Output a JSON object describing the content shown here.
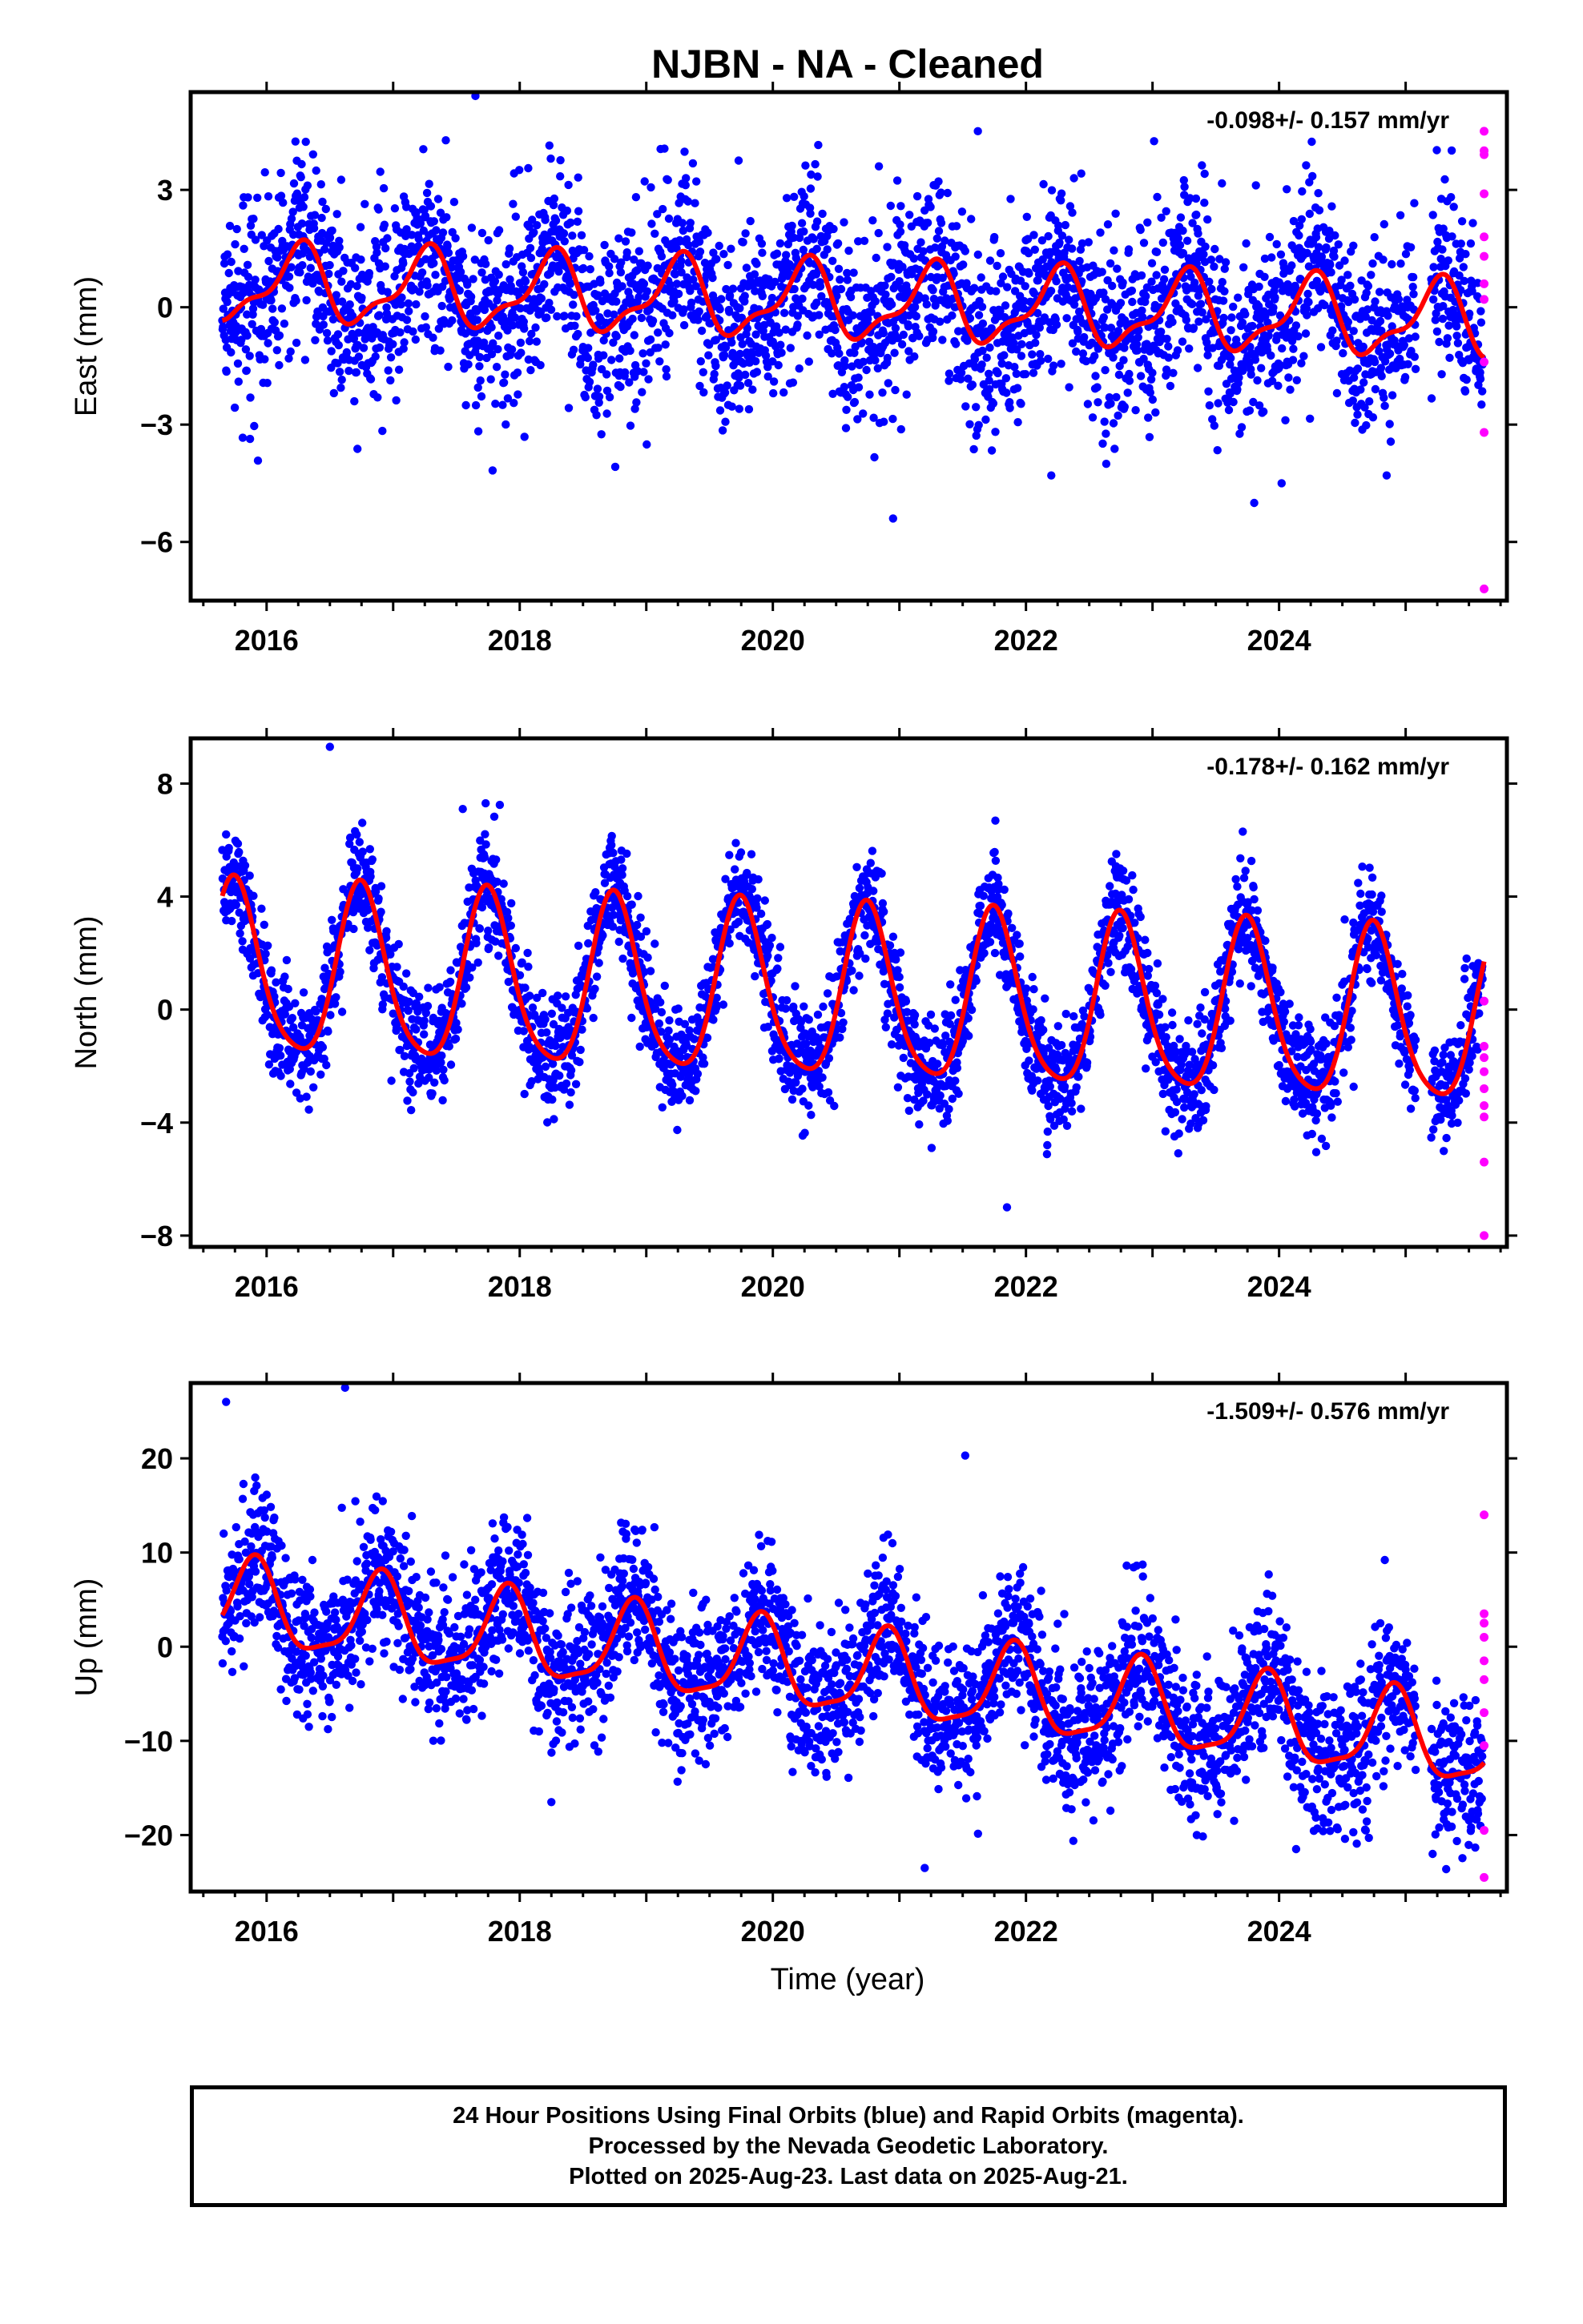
{
  "title": "NJBN  - NA - Cleaned",
  "xlabel": "Time (year)",
  "footer": {
    "line1": "24 Hour Positions Using Final Orbits (blue) and Rapid Orbits (magenta).",
    "line2": "Processed by the Nevada Geodetic Laboratory.",
    "line3": "Plotted on 2025-Aug-23. Last data on 2025-Aug-21."
  },
  "colors": {
    "final_orbits": "#0000ff",
    "rapid_orbits": "#ff00ff",
    "model_fit": "#ff0000",
    "frame": "#000000"
  },
  "chart_data": [
    {
      "type": "scatter",
      "component": "east",
      "ylabel": "East (mm)",
      "rate": "-0.098+/- 0.157 mm/yr",
      "xlim": [
        2015.4,
        2025.8
      ],
      "ylim": [
        -7.5,
        5.5
      ],
      "xticks": [
        2016,
        2018,
        2020,
        2022,
        2024
      ],
      "yticks": [
        -6,
        -3,
        0,
        3
      ],
      "ytick_labels": [
        "−6",
        "−3",
        "0",
        "3"
      ],
      "grid": false,
      "fit": {
        "offset": 0.6,
        "trend": -0.098,
        "annual_amp": 0.9,
        "annual_phase": 1.0,
        "semi_amp": 0.35,
        "semi_phase": 0.2,
        "start": 2015.65,
        "end": 2025.62
      },
      "scatter_sd": 1.2,
      "rapid_points": [
        [
          2025.62,
          4.5
        ],
        [
          2025.62,
          4.0
        ],
        [
          2025.62,
          3.9
        ],
        [
          2025.62,
          2.9
        ],
        [
          2025.62,
          1.8
        ],
        [
          2025.62,
          1.3
        ],
        [
          2025.62,
          0.6
        ],
        [
          2025.62,
          0.2
        ],
        [
          2025.62,
          -1.4
        ],
        [
          2025.62,
          -3.2
        ],
        [
          2025.62,
          -7.2
        ]
      ],
      "outliers": [
        [
          2017.65,
          5.4
        ],
        [
          2021.62,
          4.5
        ],
        [
          2020.95,
          -5.4
        ],
        [
          2022.2,
          -4.3
        ],
        [
          2024.02,
          -4.5
        ],
        [
          2024.85,
          -4.3
        ]
      ]
    },
    {
      "type": "scatter",
      "component": "north",
      "ylabel": "North (mm)",
      "rate": "-0.178+/- 0.162 mm/yr",
      "xlim": [
        2015.4,
        2025.8
      ],
      "ylim": [
        -8.4,
        9.6
      ],
      "xticks": [
        2016,
        2018,
        2020,
        2022,
        2024
      ],
      "yticks": [
        -8,
        -4,
        0,
        4,
        8
      ],
      "ytick_labels": [
        "−8",
        "−4",
        "0",
        "4",
        "8"
      ],
      "grid": false,
      "fit": {
        "offset": 1.3,
        "trend": -0.178,
        "annual_amp": 3.0,
        "annual_phase": 0.5,
        "semi_amp": 0.5,
        "semi_phase": 0.1,
        "start": 2015.65,
        "end": 2025.62
      },
      "scatter_sd": 1.0,
      "rapid_points": [
        [
          2025.62,
          0.3
        ],
        [
          2025.62,
          -1.3
        ],
        [
          2025.62,
          -1.7
        ],
        [
          2025.62,
          -2.2
        ],
        [
          2025.62,
          -2.8
        ],
        [
          2025.62,
          -3.4
        ],
        [
          2025.62,
          -3.8
        ],
        [
          2025.62,
          -5.4
        ],
        [
          2025.62,
          -8.0
        ]
      ],
      "outliers": [
        [
          2016.5,
          9.3
        ],
        [
          2021.85,
          -7.0
        ],
        [
          2017.55,
          7.1
        ],
        [
          2015.68,
          6.2
        ]
      ]
    },
    {
      "type": "scatter",
      "component": "up",
      "ylabel": "Up (mm)",
      "rate": "-1.509+/- 0.576 mm/yr",
      "xlim": [
        2015.4,
        2025.8
      ],
      "ylim": [
        -26,
        28
      ],
      "xticks": [
        2016,
        2018,
        2020,
        2022,
        2024
      ],
      "yticks": [
        -20,
        -10,
        0,
        10,
        20
      ],
      "ytick_labels": [
        "−20",
        "−10",
        "0",
        "10",
        "20"
      ],
      "grid": false,
      "fit": {
        "offset": 4.5,
        "trend": -1.509,
        "annual_amp": 4.5,
        "annual_phase": 0.65,
        "semi_amp": 1.2,
        "semi_phase": 0.3,
        "start": 2015.65,
        "end": 2025.62
      },
      "scatter_sd": 4.0,
      "rapid_points": [
        [
          2025.62,
          14.0
        ],
        [
          2025.62,
          3.5
        ],
        [
          2025.62,
          2.5
        ],
        [
          2025.62,
          1.0
        ],
        [
          2025.62,
          -1.5
        ],
        [
          2025.62,
          -3.5
        ],
        [
          2025.62,
          -7.0
        ],
        [
          2025.62,
          -10.5
        ],
        [
          2025.62,
          -19.5
        ],
        [
          2025.62,
          -24.5
        ]
      ],
      "outliers": [
        [
          2016.62,
          27.5
        ],
        [
          2021.52,
          20.3
        ],
        [
          2021.2,
          -23.5
        ],
        [
          2018.25,
          -16.5
        ],
        [
          2023.35,
          -20.0
        ],
        [
          2015.68,
          26.0
        ]
      ]
    }
  ]
}
